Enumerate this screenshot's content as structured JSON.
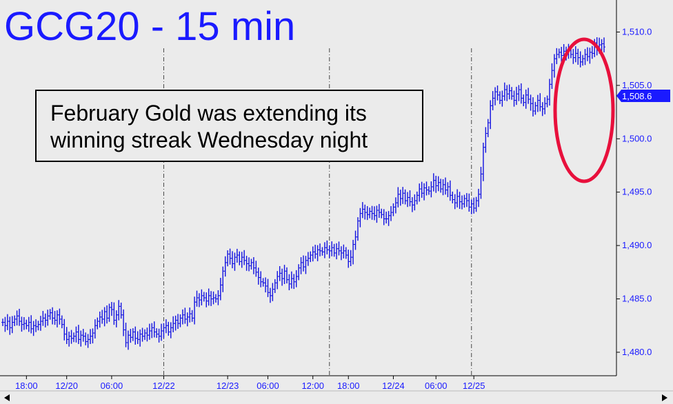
{
  "title": "GCG20 - 15 min",
  "annotation": {
    "line1": "February Gold was extending its",
    "line2": "winning streak Wednesday night"
  },
  "price_label": "1,508.6",
  "colors": {
    "background": "#ebebeb",
    "price_line": "#1010e0",
    "title": "#1a1aff",
    "highlight_circle": "#e8103c",
    "price_badge": "#1a1aff"
  },
  "icons": {
    "scroll_left": "triangle-left-icon",
    "scroll_right": "triangle-right-icon"
  },
  "chart_data": {
    "type": "line",
    "style": "ohlc-bars",
    "y_axis": {
      "position": "right",
      "ylim": [
        1477.8,
        1513.0
      ],
      "ticks": [
        1480.0,
        1485.0,
        1490.0,
        1495.0,
        1500.0,
        1505.0,
        1510.0
      ],
      "tick_labels": [
        "1,480.0",
        "1,485.0",
        "1,490.0",
        "1,495.0",
        "1,500.0",
        "1,505.0",
        "1,510.0"
      ]
    },
    "x_axis": {
      "tick_labels": [
        "18:00",
        "12/20",
        "06:00",
        "12/22",
        "12/23",
        "06:00",
        "12:00",
        "18:00",
        "12/24",
        "06:00",
        "12/25"
      ],
      "tick_index": [
        10,
        27,
        46,
        68,
        95,
        112,
        131,
        146,
        165,
        183,
        199
      ]
    },
    "session_dividers_index": [
      68,
      138,
      198
    ],
    "last_price": 1508.6,
    "highlight": "ellipse around final rally",
    "series": [
      {
        "close": [
          1482.8,
          1482.5,
          1482.9,
          1482.3,
          1482.8,
          1483.1,
          1483.4,
          1482.9,
          1482.6,
          1482.7,
          1482.5,
          1482.8,
          1482.2,
          1482.5,
          1482.4,
          1482.6,
          1482.9,
          1483.2,
          1483.0,
          1483.4,
          1483.7,
          1483.2,
          1483.0,
          1483.5,
          1483.1,
          1482.6,
          1481.7,
          1481.2,
          1481.5,
          1481.3,
          1481.5,
          1481.9,
          1481.2,
          1481.6,
          1481.5,
          1481.0,
          1481.2,
          1481.5,
          1481.8,
          1482.5,
          1482.9,
          1483.3,
          1483.1,
          1483.8,
          1483.2,
          1484.2,
          1484.0,
          1483.0,
          1483.5,
          1484.3,
          1483.5,
          1482.1,
          1480.9,
          1481.6,
          1481.4,
          1481.9,
          1481.3,
          1481.2,
          1481.7,
          1481.5,
          1481.8,
          1481.6,
          1482.0,
          1482.3,
          1481.9,
          1481.7,
          1481.5,
          1482.0,
          1482.3,
          1482.5,
          1481.9,
          1482.3,
          1482.7,
          1483.0,
          1482.7,
          1483.2,
          1483.5,
          1483.1,
          1483.3,
          1483.6,
          1483.2,
          1484.7,
          1485.1,
          1484.9,
          1485.3,
          1485.1,
          1484.8,
          1485.3,
          1485.0,
          1485.1,
          1485.0,
          1485.3,
          1486.3,
          1487.6,
          1488.4,
          1489.2,
          1488.8,
          1488.3,
          1488.9,
          1489.1,
          1488.5,
          1488.9,
          1488.6,
          1488.3,
          1488.1,
          1488.4,
          1487.9,
          1487.5,
          1487.0,
          1486.6,
          1486.5,
          1486.2,
          1485.6,
          1485.3,
          1485.9,
          1486.5,
          1487.1,
          1487.4,
          1486.9,
          1487.6,
          1486.8,
          1486.4,
          1486.9,
          1486.6,
          1487.1,
          1487.9,
          1488.4,
          1488.0,
          1488.6,
          1488.8,
          1489.1,
          1489.4,
          1489.2,
          1489.6,
          1489.5,
          1489.4,
          1489.8,
          1489.6,
          1489.5,
          1489.8,
          1489.3,
          1489.7,
          1489.5,
          1489.3,
          1489.5,
          1489.1,
          1488.5,
          1488.9,
          1490.1,
          1490.8,
          1492.3,
          1493.0,
          1493.4,
          1493.1,
          1492.9,
          1493.2,
          1493.0,
          1492.8,
          1493.3,
          1493.1,
          1492.9,
          1492.5,
          1492.5,
          1492.8,
          1493.1,
          1493.6,
          1494.0,
          1494.8,
          1494.4,
          1494.9,
          1494.2,
          1494.5,
          1494.1,
          1493.8,
          1494.2,
          1494.7,
          1495.3,
          1494.9,
          1495.4,
          1495.2,
          1495.1,
          1495.5,
          1496.1,
          1495.6,
          1495.9,
          1495.3,
          1495.7,
          1495.2,
          1495.5,
          1494.7,
          1494.3,
          1494.0,
          1494.6,
          1494.1,
          1493.9,
          1494.4,
          1494.2,
          1493.6,
          1493.9,
          1493.5,
          1494.2,
          1494.8,
          1496.7,
          1499.2,
          1500.5,
          1501.5,
          1503.1,
          1503.8,
          1504.4,
          1504.1,
          1503.6,
          1504.0,
          1504.6,
          1504.2,
          1504.5,
          1504.0,
          1503.6,
          1504.2,
          1504.6,
          1503.8,
          1503.4,
          1504.1,
          1503.7,
          1503.3,
          1502.6,
          1503.1,
          1503.6,
          1503.0,
          1502.8,
          1503.3,
          1503.7,
          1505.1,
          1506.4,
          1507.5,
          1507.9,
          1508.1,
          1507.8,
          1508.2,
          1508.0,
          1508.3,
          1507.9,
          1507.6,
          1508.0,
          1507.6,
          1507.2,
          1507.5,
          1507.9,
          1507.7,
          1508.1,
          1508.0,
          1509.0,
          1508.4,
          1508.8,
          1508.9,
          1508.6
        ]
      }
    ]
  }
}
